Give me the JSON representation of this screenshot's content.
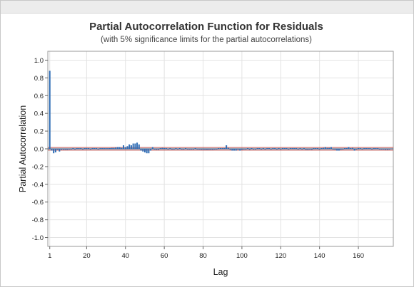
{
  "chart_data": {
    "type": "bar",
    "title": "Partial Autocorrelation Function for Residuals",
    "subtitle": "(with 5% significance limits for the partial autocorrelations)",
    "xlabel": "Lag",
    "ylabel": "Partial Autocorrelation",
    "xlim": [
      0,
      178
    ],
    "ylim": [
      -1.1,
      1.1
    ],
    "x_ticks": [
      1,
      20,
      40,
      60,
      80,
      100,
      120,
      140,
      160
    ],
    "y_ticks": [
      1.0,
      0.8,
      0.6,
      0.4,
      0.2,
      0.0,
      -0.2,
      -0.4,
      -0.6,
      -0.8,
      -1.0
    ],
    "y_tick_labels": [
      "1.0",
      "0.8",
      "0.6",
      "0.4",
      "0.2",
      "0.0",
      "-0.2",
      "-0.4",
      "-0.6",
      "-0.8",
      "-1.0"
    ],
    "grid": true,
    "significance_limit": 0.015,
    "colors": {
      "bars": "#2f6db5",
      "limits": "#c0504d",
      "zero_line": "#1f3864",
      "grid": "#e3e3e3",
      "frame": "#9a9a9a"
    },
    "series": [
      {
        "lags": [
          1,
          2,
          3,
          4,
          5,
          6,
          7,
          8,
          9,
          10,
          11,
          12,
          13,
          14,
          15,
          16,
          17,
          18,
          19,
          20,
          21,
          22,
          23,
          24,
          25,
          26,
          27,
          28,
          29,
          30,
          31,
          32,
          33,
          34,
          35,
          36,
          37,
          38,
          39,
          40,
          41,
          42,
          43,
          44,
          45,
          46,
          47,
          48,
          49,
          50,
          51,
          52,
          53,
          54,
          55,
          56,
          57,
          58,
          59,
          60,
          61,
          62,
          63,
          64,
          65,
          66,
          67,
          68,
          69,
          70,
          71,
          72,
          73,
          74,
          75,
          76,
          77,
          78,
          79,
          80,
          81,
          82,
          83,
          84,
          85,
          86,
          87,
          88,
          89,
          90,
          91,
          92,
          93,
          94,
          95,
          96,
          97,
          98,
          99,
          100,
          101,
          102,
          103,
          104,
          105,
          106,
          107,
          108,
          109,
          110,
          111,
          112,
          113,
          114,
          115,
          116,
          117,
          118,
          119,
          120,
          121,
          122,
          123,
          124,
          125,
          126,
          127,
          128,
          129,
          130,
          131,
          132,
          133,
          134,
          135,
          136,
          137,
          138,
          139,
          140,
          141,
          142,
          143,
          144,
          145,
          146,
          147,
          148,
          149,
          150,
          151,
          152,
          153,
          154,
          155,
          156,
          157,
          158,
          159,
          160,
          161,
          162,
          163,
          164,
          165,
          166,
          167,
          168,
          169,
          170,
          171,
          172,
          173,
          174,
          175,
          176
        ],
        "values": [
          0.88,
          -0.02,
          -0.05,
          -0.04,
          -0.01,
          -0.03,
          -0.01,
          -0.01,
          -0.01,
          -0.01,
          -0.005,
          -0.005,
          0.005,
          -0.005,
          0.005,
          0.005,
          0.005,
          -0.005,
          0.005,
          0.005,
          0.005,
          -0.005,
          0.005,
          0.005,
          0.005,
          -0.005,
          0.005,
          0.005,
          0.005,
          0.005,
          0.005,
          0.005,
          0.01,
          0.01,
          0.015,
          0.02,
          0.02,
          0.01,
          0.04,
          0.02,
          0.03,
          0.05,
          0.04,
          0.06,
          0.06,
          0.07,
          0.05,
          -0.02,
          -0.03,
          -0.04,
          -0.05,
          -0.05,
          -0.02,
          0.02,
          -0.005,
          -0.01,
          -0.01,
          0.005,
          0.01,
          0.005,
          0.005,
          -0.005,
          0.005,
          -0.005,
          -0.005,
          0.005,
          -0.005,
          0.005,
          -0.005,
          -0.005,
          0.005,
          -0.005,
          -0.005,
          -0.005,
          -0.005,
          0.005,
          -0.005,
          -0.005,
          -0.01,
          -0.01,
          -0.01,
          -0.01,
          -0.01,
          -0.01,
          -0.01,
          -0.005,
          -0.005,
          0.005,
          0.005,
          0.005,
          0.005,
          0.04,
          0.01,
          -0.01,
          -0.02,
          -0.02,
          -0.02,
          -0.01,
          -0.02,
          -0.01,
          -0.005,
          -0.005,
          0.005,
          -0.01,
          0.005,
          -0.005,
          -0.005,
          0.005,
          0.005,
          -0.005,
          0.005,
          -0.005,
          0.005,
          0.005,
          -0.005,
          0.005,
          0.005,
          -0.005,
          0.005,
          -0.005,
          0.005,
          0.005,
          0.005,
          -0.005,
          0.005,
          0.005,
          0.005,
          0.005,
          -0.005,
          0.005,
          -0.005,
          0.005,
          -0.01,
          -0.01,
          -0.005,
          -0.01,
          0.005,
          0.005,
          0.005,
          -0.005,
          0.005,
          0.01,
          0.02,
          0.01,
          0.01,
          0.02,
          -0.005,
          -0.01,
          -0.02,
          -0.02,
          -0.01,
          -0.005,
          0.005,
          0.005,
          0.02,
          0.005,
          0.01,
          -0.02,
          -0.005,
          0.005,
          0.005,
          -0.005,
          0.005,
          0.005,
          0.005,
          0.005,
          -0.005,
          0.005,
          0.005,
          0.005,
          -0.005,
          -0.005,
          -0.005,
          -0.01,
          -0.01,
          -0.005
        ]
      }
    ]
  }
}
